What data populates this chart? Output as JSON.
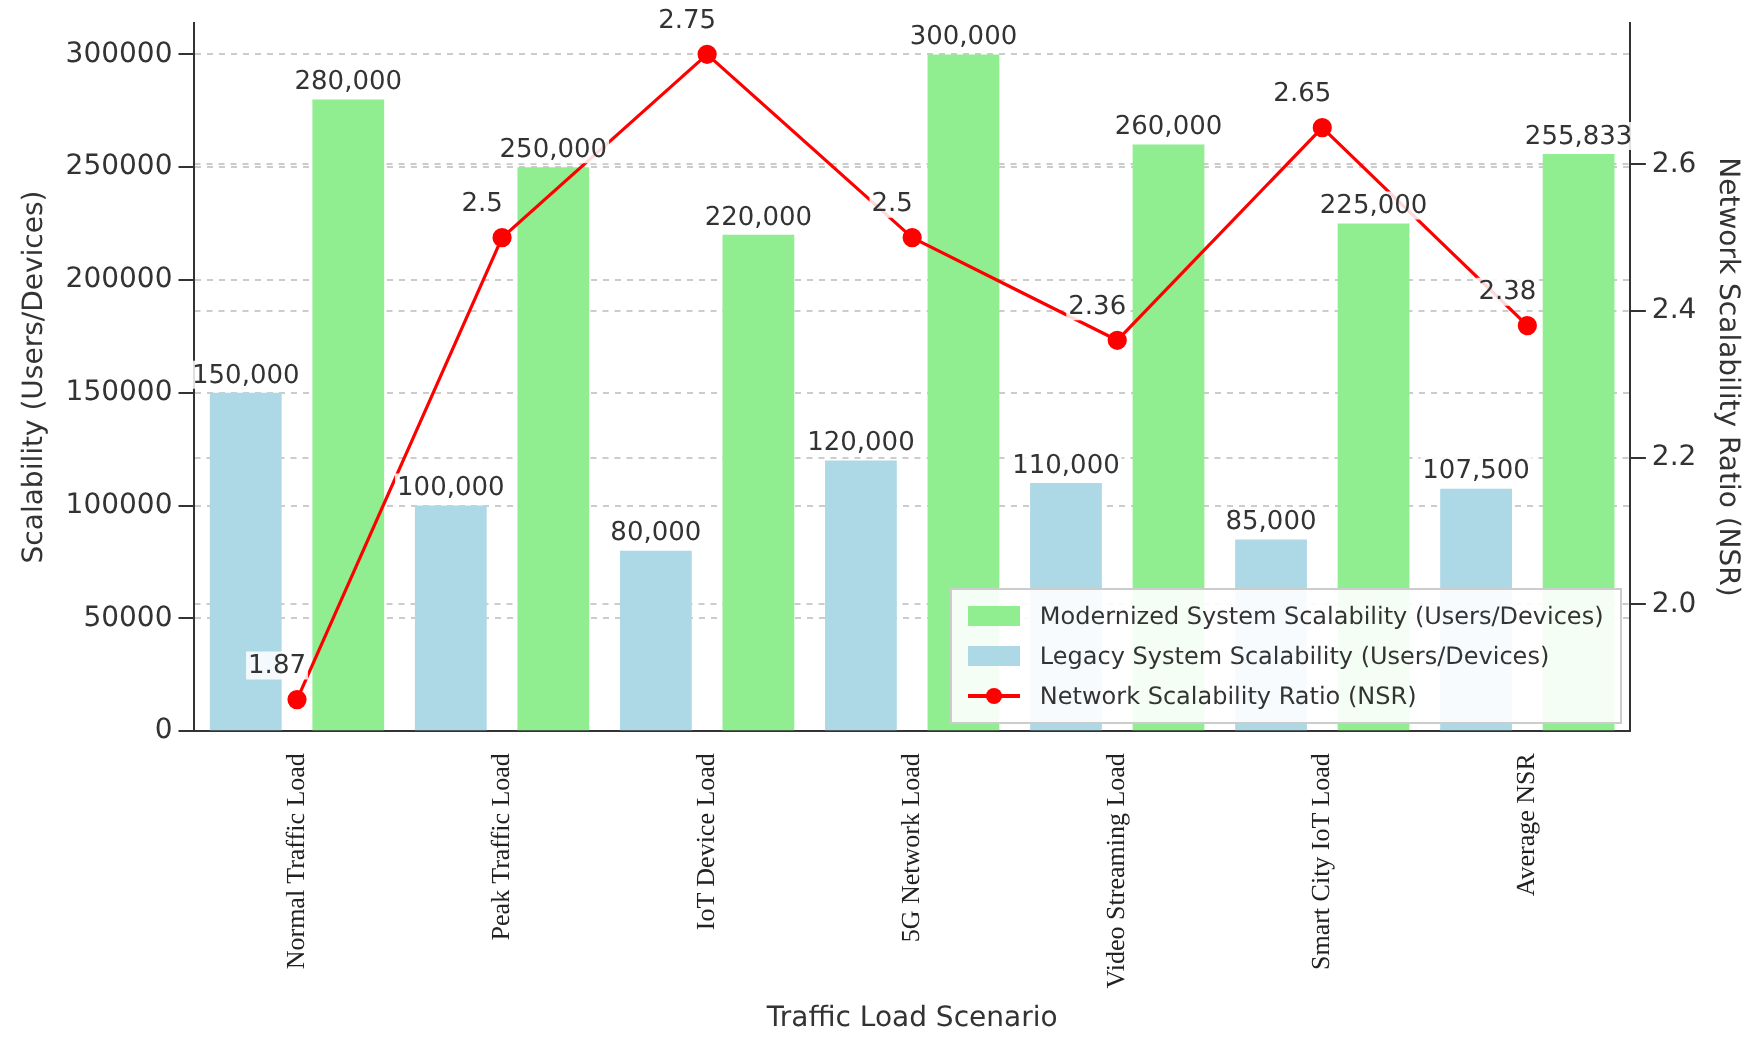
{
  "chart_data": {
    "type": "bar",
    "categories": [
      "Normal Traffic Load",
      "Peak Traffic Load",
      "IoT Device Load",
      "5G Network Load",
      "Video Streaming Load",
      "Smart City IoT Load",
      "Average NSR"
    ],
    "series": [
      {
        "name": "Modernized System Scalability (Users/Devices)",
        "color": "#90ee90",
        "values": [
          280000,
          250000,
          220000,
          300000,
          260000,
          225000,
          255833
        ],
        "value_labels": [
          "280,000",
          "250,000",
          "220,000",
          "300,000",
          "260,000",
          "225,000",
          "255,833"
        ]
      },
      {
        "name": "Legacy System Scalability (Users/Devices)",
        "color": "#add8e6",
        "values": [
          150000,
          100000,
          80000,
          120000,
          110000,
          85000,
          107500
        ],
        "value_labels": [
          "150,000",
          "100,000",
          "80,000",
          "120,000",
          "110,000",
          "85,000",
          "107,500"
        ]
      },
      {
        "name": "Network Scalability Ratio (NSR)",
        "type": "line",
        "axis": "y2",
        "color": "#ff0000",
        "marker": "circle",
        "values": [
          1.87,
          2.5,
          2.75,
          2.5,
          2.36,
          2.65,
          2.38
        ],
        "value_labels": [
          "1.87",
          "2.5",
          "2.75",
          "2.5",
          "2.36",
          "2.65",
          "2.38"
        ]
      }
    ],
    "xlabel": "Traffic Load Scenario",
    "ylabel": "Scalability (Users/Devices)",
    "y2label": "Network Scalability Ratio (NSR)",
    "ylim": [
      0,
      314000
    ],
    "yticks": [
      0,
      50000,
      100000,
      150000,
      200000,
      250000,
      300000
    ],
    "y2lim": [
      1.827,
      2.793
    ],
    "y2ticks": [
      {
        "value": 2.0,
        "label": "2.0"
      },
      {
        "value": 2.2,
        "label": "2.2"
      },
      {
        "value": 2.4,
        "label": "2.4"
      },
      {
        "value": 2.6,
        "label": "2.6"
      }
    ],
    "grid": "y",
    "legend": "bottom right"
  }
}
